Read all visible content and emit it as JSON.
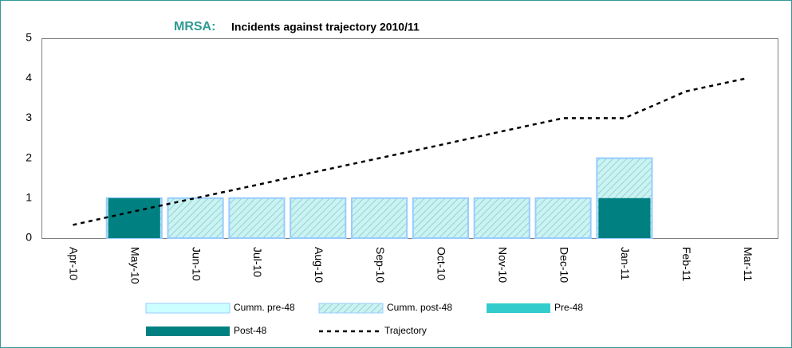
{
  "chart_data": {
    "type": "bar",
    "title_prefix": "MRSA:",
    "title": "Incidents against trajectory 2010/11",
    "categories": [
      "Apr-10",
      "May-10",
      "Jun-10",
      "Jul-10",
      "Aug-10",
      "Sep-10",
      "Oct-10",
      "Nov-10",
      "Dec-10",
      "Jan-11",
      "Feb-11",
      "Mar-11"
    ],
    "series": [
      {
        "name": "Cumm. pre-48",
        "type": "bar",
        "group": "cumulative",
        "color": "#ccffff",
        "values": [
          0,
          0,
          0,
          0,
          0,
          0,
          0,
          0,
          0,
          0,
          null,
          null
        ]
      },
      {
        "name": "Cumm. post-48",
        "type": "bar",
        "group": "cumulative",
        "color": "#ccf2f2",
        "pattern": "hatch",
        "values": [
          0,
          1,
          1,
          1,
          1,
          1,
          1,
          1,
          1,
          2,
          null,
          null
        ]
      },
      {
        "name": "Pre-48",
        "type": "bar",
        "group": "monthly",
        "color": "#33cccc",
        "values": [
          0,
          0,
          0,
          0,
          0,
          0,
          0,
          0,
          0,
          0,
          null,
          null
        ]
      },
      {
        "name": "Post-48",
        "type": "bar",
        "group": "monthly",
        "color": "#008080",
        "values": [
          0,
          1,
          0,
          0,
          0,
          0,
          0,
          0,
          0,
          1,
          null,
          null
        ]
      },
      {
        "name": "Trajectory",
        "type": "line",
        "dash": true,
        "color": "#000000",
        "values": [
          0.33,
          0.67,
          1.0,
          1.33,
          1.67,
          2.0,
          2.33,
          2.67,
          3.0,
          3.0,
          3.67,
          4.0
        ]
      }
    ],
    "ylim": [
      0,
      5
    ],
    "yticks": [
      0,
      1,
      2,
      3,
      4,
      5
    ],
    "grid": false,
    "legend": "bottom"
  }
}
